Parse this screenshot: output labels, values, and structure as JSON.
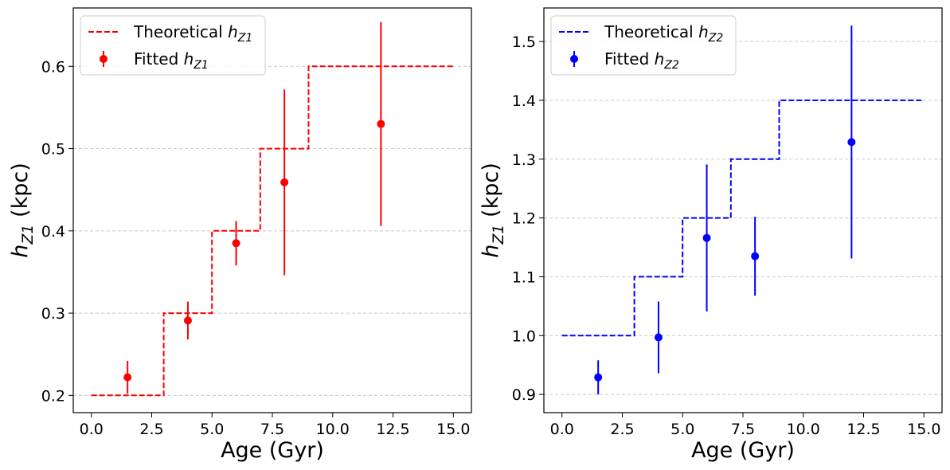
{
  "chart_data": [
    {
      "type": "line",
      "color": "#ff0000",
      "xlabel": "Age (Gyr)",
      "ylabel": {
        "base": "h",
        "sub": "Z1",
        "unit": " (kpc)"
      },
      "xlim": [
        -0.75,
        15.75
      ],
      "ylim": [
        0.179,
        0.671
      ],
      "xticks": [
        0.0,
        2.5,
        5.0,
        7.5,
        10.0,
        12.5,
        15.0
      ],
      "xtick_labels": [
        "0.0",
        "2.5",
        "5.0",
        "7.5",
        "10.0",
        "12.5",
        "15.0"
      ],
      "yticks": [
        0.2,
        0.3,
        0.4,
        0.5,
        0.6
      ],
      "ytick_labels": [
        "0.2",
        "0.3",
        "0.4",
        "0.5",
        "0.6"
      ],
      "grid": "y-dashed",
      "legend_position": "top-left",
      "series": [
        {
          "name": "Theoretical",
          "legend_base": "Theoretical ",
          "legend_sub": "Z1",
          "kind": "step",
          "x": [
            0,
            3,
            3,
            5,
            5,
            7,
            7,
            9,
            9,
            15
          ],
          "y": [
            0.2,
            0.2,
            0.3,
            0.3,
            0.4,
            0.4,
            0.5,
            0.5,
            0.6,
            0.6
          ]
        },
        {
          "name": "Fitted",
          "legend_base": "Fitted ",
          "legend_sub": "Z1",
          "kind": "errorbar",
          "x": [
            1.5,
            4,
            6,
            8,
            12
          ],
          "y": [
            0.222,
            0.291,
            0.385,
            0.459,
            0.53
          ],
          "yerr": [
            0.02,
            0.023,
            0.027,
            0.113,
            0.124
          ]
        }
      ]
    },
    {
      "type": "line",
      "color": "#0000ff",
      "xlabel": "Age (Gyr)",
      "ylabel": {
        "base": "h",
        "sub": "Z1",
        "unit": " (kpc)"
      },
      "xlim": [
        -0.75,
        15.75
      ],
      "ylim": [
        0.869,
        1.557
      ],
      "xticks": [
        0.0,
        2.5,
        5.0,
        7.5,
        10.0,
        12.5,
        15.0
      ],
      "xtick_labels": [
        "0.0",
        "2.5",
        "5.0",
        "7.5",
        "10.0",
        "12.5",
        "15.0"
      ],
      "yticks": [
        0.9,
        1.0,
        1.1,
        1.2,
        1.3,
        1.4,
        1.5
      ],
      "ytick_labels": [
        "0.9",
        "1.0",
        "1.1",
        "1.2",
        "1.3",
        "1.4",
        "1.5"
      ],
      "grid": "y-dashed",
      "legend_position": "top-left",
      "series": [
        {
          "name": "Theoretical",
          "legend_base": "Theoretical ",
          "legend_sub": "Z2",
          "kind": "step",
          "x": [
            0,
            3,
            3,
            5,
            5,
            7,
            7,
            9,
            9,
            15
          ],
          "y": [
            1.0,
            1.0,
            1.1,
            1.1,
            1.2,
            1.2,
            1.3,
            1.3,
            1.4,
            1.4
          ]
        },
        {
          "name": "Fitted",
          "legend_base": "Fitted ",
          "legend_sub": "Z2",
          "kind": "errorbar",
          "x": [
            1.5,
            4,
            6,
            8,
            12
          ],
          "y": [
            0.929,
            0.997,
            1.166,
            1.135,
            1.329
          ],
          "yerr": [
            0.029,
            0.061,
            0.125,
            0.067,
            0.198
          ]
        }
      ]
    }
  ]
}
